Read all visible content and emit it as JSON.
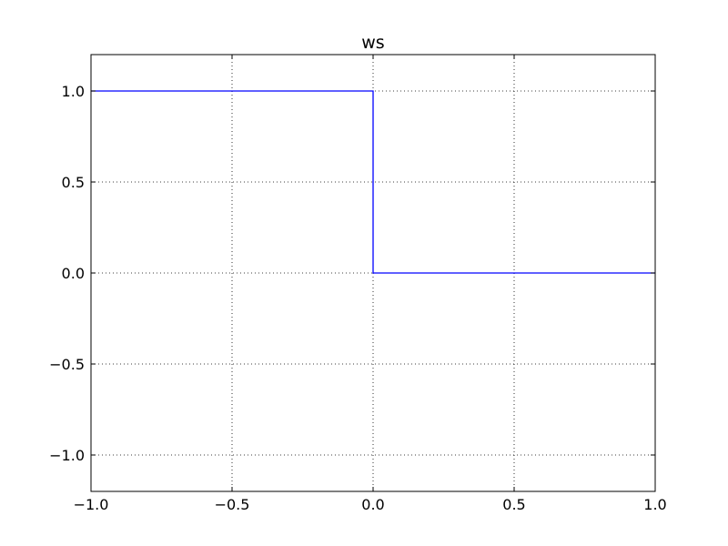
{
  "chart_data": {
    "type": "line",
    "title": "ws",
    "xlabel": "",
    "ylabel": "",
    "xlim": [
      -1.0,
      1.0
    ],
    "ylim": [
      -1.2,
      1.2
    ],
    "grid": true,
    "grid_style": "dotted",
    "x_ticks": [
      -1.0,
      -0.5,
      0.0,
      0.5,
      1.0
    ],
    "x_tick_labels": [
      "−1.0",
      "−0.5",
      "0.0",
      "0.5",
      "1.0"
    ],
    "y_ticks": [
      -1.0,
      -0.5,
      0.0,
      0.5,
      1.0
    ],
    "y_tick_labels": [
      "−1.0",
      "−0.5",
      "0.0",
      "0.5",
      "1.0"
    ],
    "line_color": "#0000ff",
    "series": [
      {
        "x": [
          -1.0,
          0.0,
          0.0,
          1.0
        ],
        "y": [
          1.0,
          1.0,
          0.0,
          0.0
        ]
      }
    ]
  }
}
